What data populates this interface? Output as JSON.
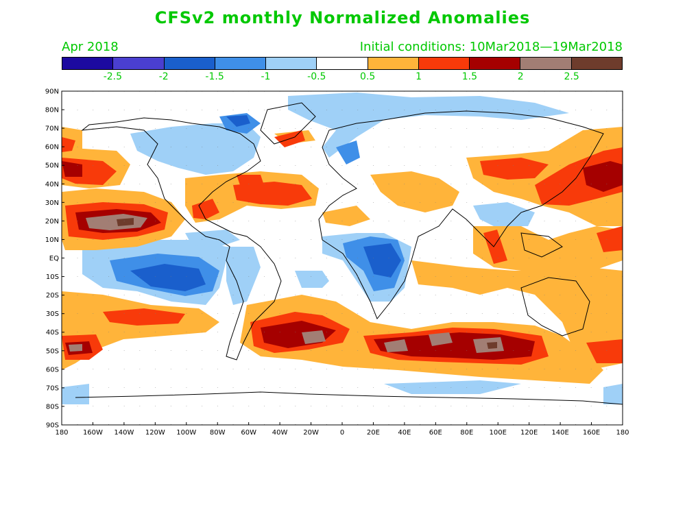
{
  "title": "CFSv2 monthly Normalized Anomalies",
  "valid_month": "Apr 2018",
  "initial_conditions": "Initial conditions: 10Mar2018—19Mar2018",
  "colorbar": {
    "colors": [
      "#1c0aa0",
      "#4a3fd0",
      "#1a5fcc",
      "#3f8fe8",
      "#9fd0f7",
      "#ffffff",
      "#ffb43a",
      "#f83a0a",
      "#a50000",
      "#a27e74",
      "#6e3c2c"
    ],
    "tick_labels": [
      "-2.5",
      "-2",
      "-1.5",
      "-1",
      "-0.5",
      "0.5",
      "1",
      "1.5",
      "2",
      "2.5"
    ]
  },
  "axes": {
    "lat_labels": [
      "90N",
      "80N",
      "70N",
      "60N",
      "50N",
      "40N",
      "30N",
      "20N",
      "10N",
      "EQ",
      "10S",
      "20S",
      "30S",
      "40S",
      "50S",
      "60S",
      "70S",
      "80S",
      "90S"
    ],
    "lon_labels": [
      "180",
      "160W",
      "140W",
      "120W",
      "100W",
      "80W",
      "60W",
      "40W",
      "20W",
      "0",
      "20E",
      "40E",
      "60E",
      "80E",
      "100E",
      "120E",
      "140E",
      "160E",
      "180"
    ]
  }
}
